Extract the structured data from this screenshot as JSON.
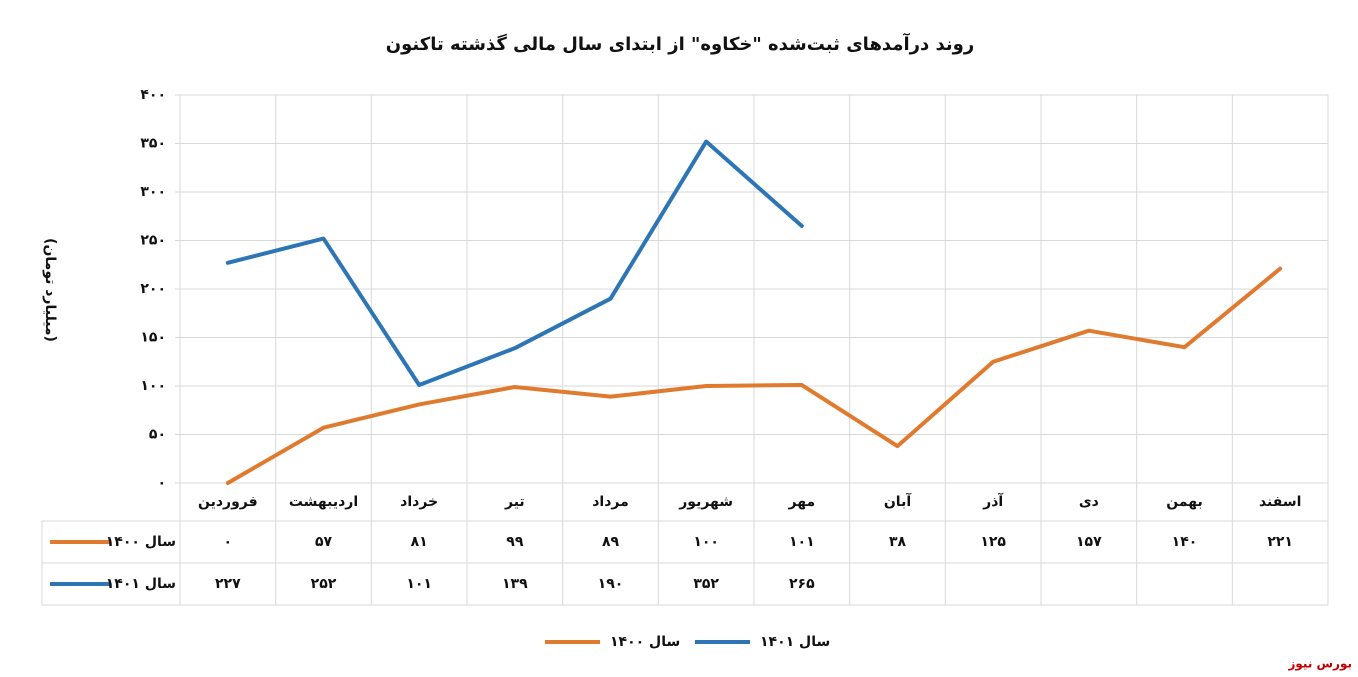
{
  "chart_data": {
    "type": "line",
    "title": "روند درآمدهای ثبت‌شده \"خکاوه\" از ابتدای سال مالی گذشته تاکنون",
    "y_label": "(میلیارد تومان)",
    "categories": [
      "فروردین",
      "اردیبهشت",
      "خرداد",
      "تیر",
      "مرداد",
      "شهریور",
      "مهر",
      "آبان",
      "آذر",
      "دی",
      "بهمن",
      "اسفند"
    ],
    "series": [
      {
        "name": "سال ۱۴۰۰",
        "color": "#e07a2f",
        "values": [
          0,
          57,
          81,
          99,
          89,
          100,
          101,
          38,
          125,
          157,
          140,
          221
        ],
        "value_labels": [
          "۰",
          "۵۷",
          "۸۱",
          "۹۹",
          "۸۹",
          "۱۰۰",
          "۱۰۱",
          "۳۸",
          "۱۲۵",
          "۱۵۷",
          "۱۴۰",
          "۲۲۱"
        ]
      },
      {
        "name": "سال ۱۴۰۱",
        "color": "#2e75b6",
        "values": [
          227,
          252,
          101,
          139,
          190,
          352,
          265,
          null,
          null,
          null,
          null,
          null
        ],
        "value_labels": [
          "۲۲۷",
          "۲۵۲",
          "۱۰۱",
          "۱۳۹",
          "۱۹۰",
          "۳۵۲",
          "۲۶۵",
          null,
          null,
          null,
          null,
          null
        ]
      }
    ],
    "ylim": [
      0,
      400
    ],
    "yticks": [
      {
        "value": 0,
        "label": "۰"
      },
      {
        "value": 50,
        "label": "۵۰"
      },
      {
        "value": 100,
        "label": "۱۰۰"
      },
      {
        "value": 150,
        "label": "۱۵۰"
      },
      {
        "value": 200,
        "label": "۲۰۰"
      },
      {
        "value": 250,
        "label": "۲۵۰"
      },
      {
        "value": 300,
        "label": "۳۰۰"
      },
      {
        "value": 350,
        "label": "۳۵۰"
      },
      {
        "value": 400,
        "label": "۴۰۰"
      }
    ],
    "grid": true,
    "legend": "bottom",
    "source": "بورس نیوز"
  }
}
